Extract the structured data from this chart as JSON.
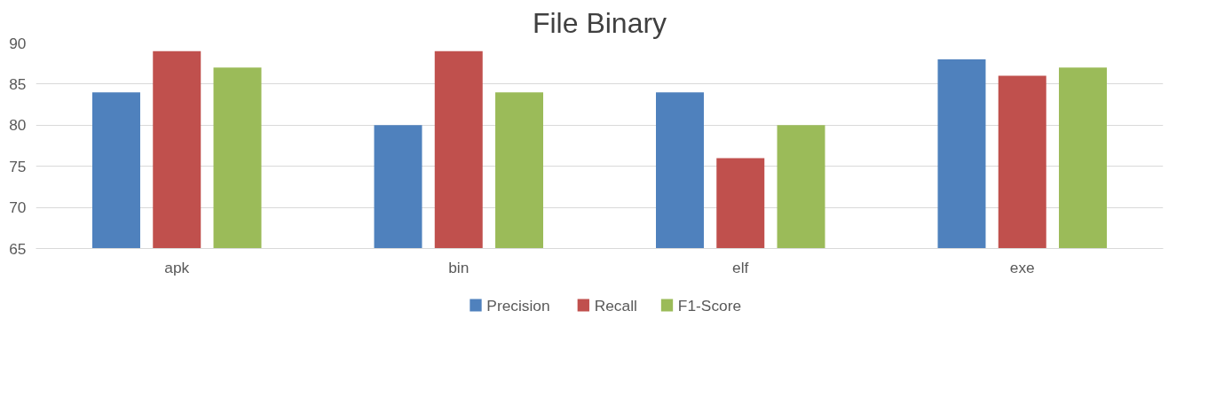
{
  "chart_data": {
    "type": "bar",
    "title": "File Binary",
    "categories": [
      "apk",
      "bin",
      "elf",
      "exe"
    ],
    "series": [
      {
        "name": "Precision",
        "color": "#4f81bd",
        "values": [
          84,
          80,
          84,
          88
        ]
      },
      {
        "name": "Recall",
        "color": "#c0504d",
        "values": [
          89,
          89,
          76,
          86
        ]
      },
      {
        "name": "F1-Score",
        "color": "#9bbb59",
        "values": [
          87,
          84,
          80,
          87
        ]
      }
    ],
    "ylim": [
      65,
      90
    ],
    "yticks": [
      65,
      70,
      75,
      80,
      85,
      90
    ],
    "grid": "y",
    "legend": "bottom"
  }
}
